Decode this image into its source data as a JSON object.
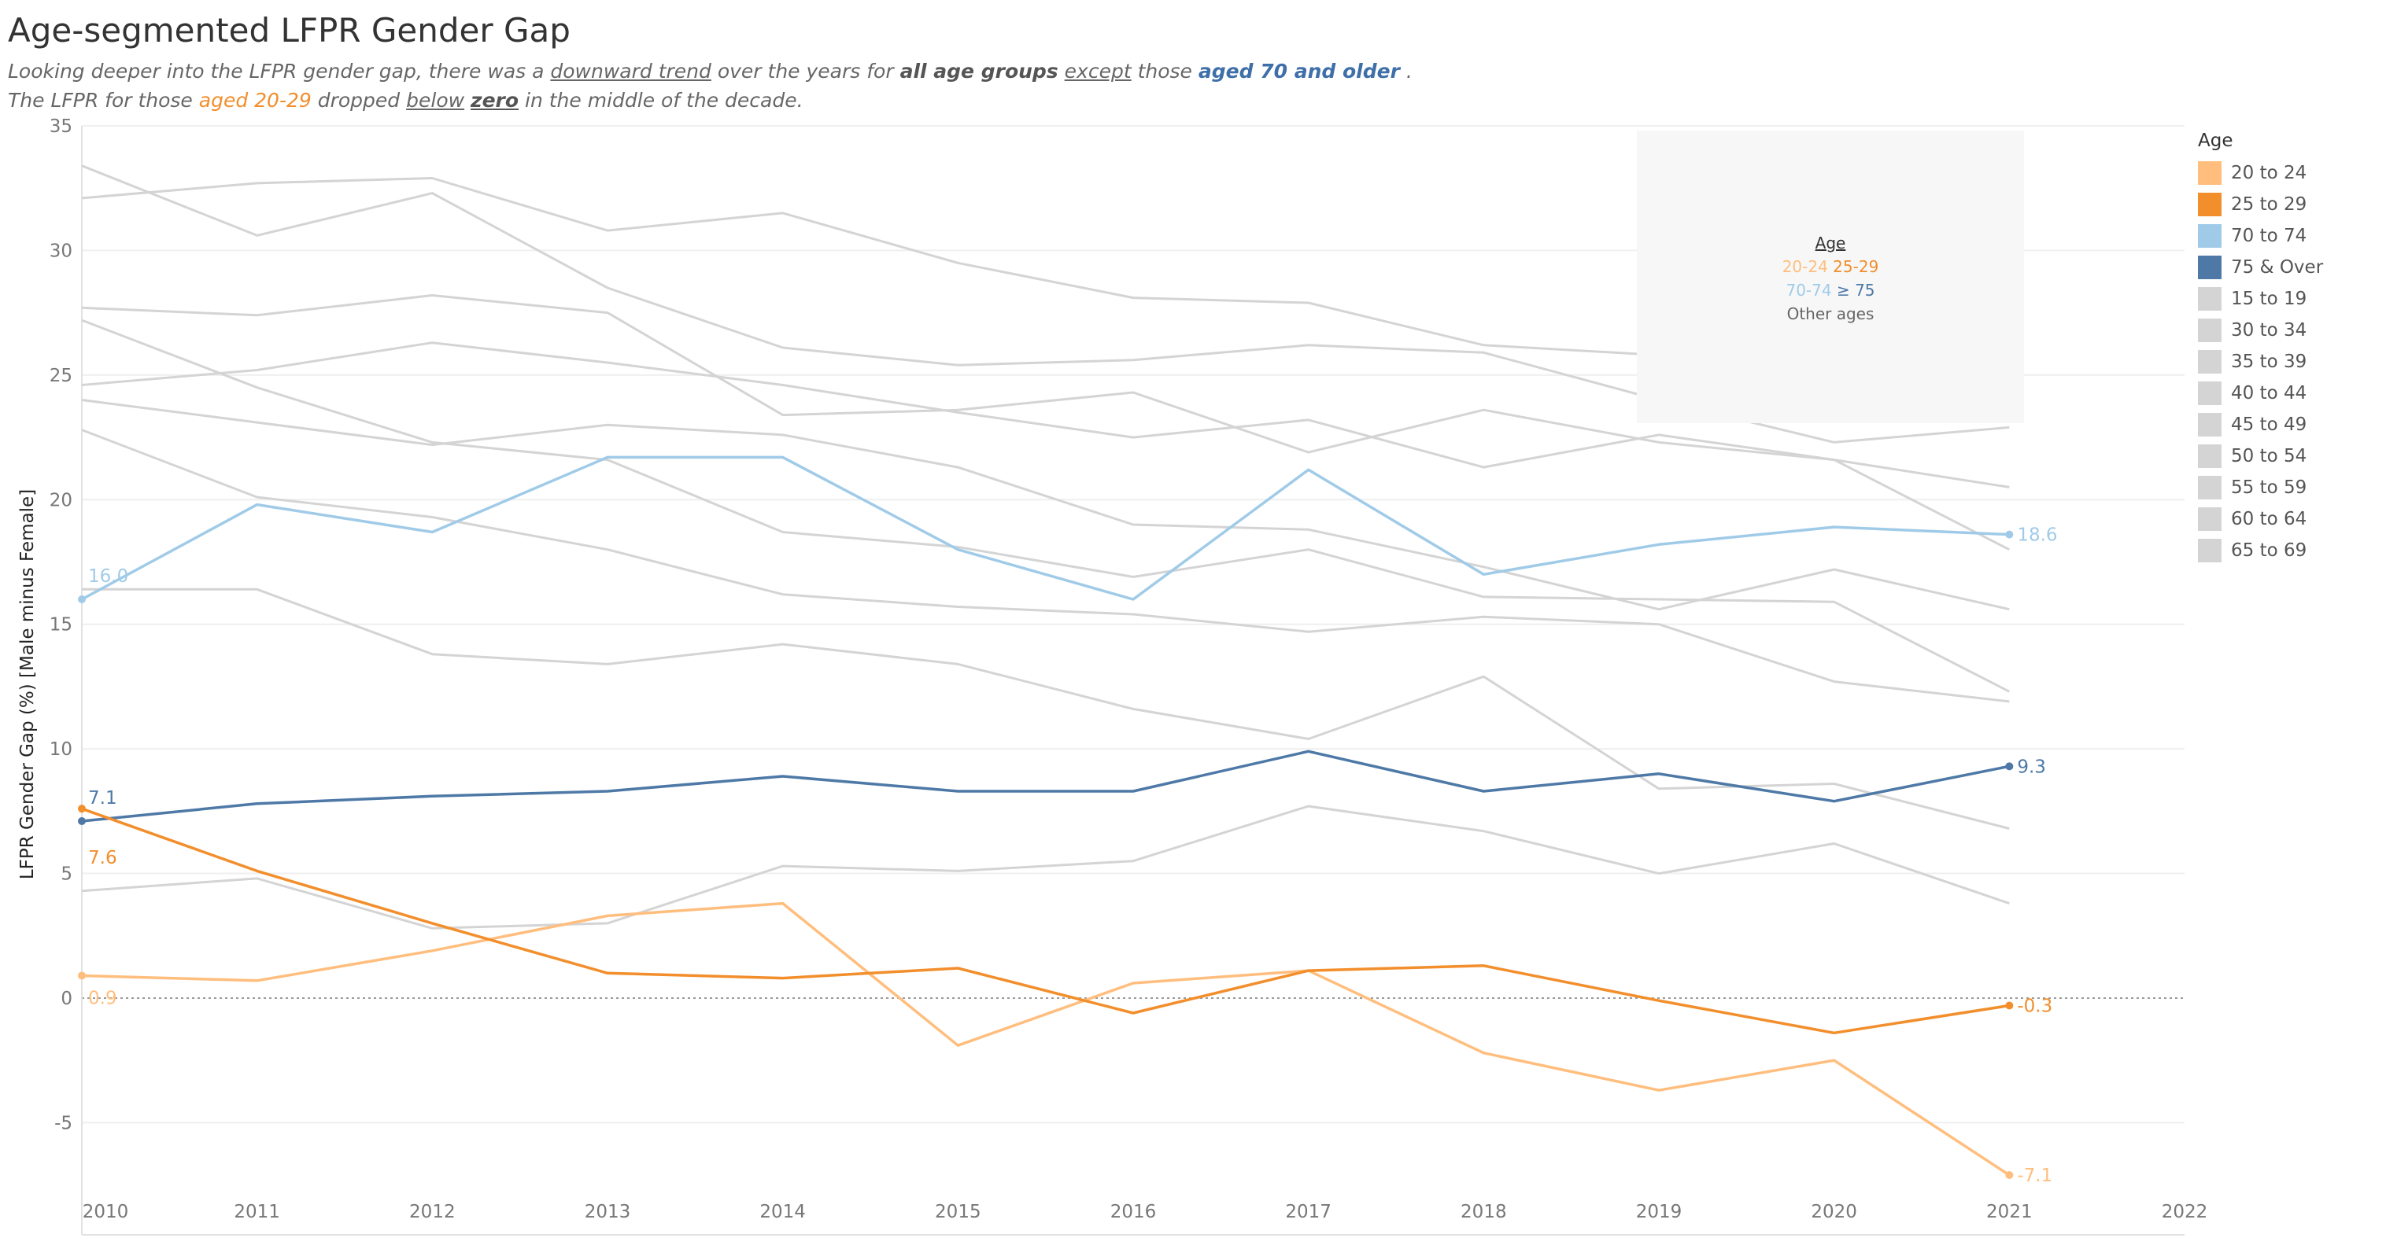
{
  "title": "Age-segmented LFPR Gender Gap",
  "subtitle": {
    "line1": [
      {
        "text": "Looking deeper into the LFPR gender gap, there was a ",
        "style": ""
      },
      {
        "text": "downward trend",
        "style": "u"
      },
      {
        "text": " over the years for ",
        "style": ""
      },
      {
        "text": "all age groups",
        "style": "b"
      },
      {
        "text": " ",
        "style": ""
      },
      {
        "text": "except",
        "style": "u"
      },
      {
        "text": "  those ",
        "style": ""
      },
      {
        "text": "aged 70 and older",
        "style": "blue"
      },
      {
        "text": " .",
        "style": ""
      }
    ],
    "line2": [
      {
        "text": "The LFPR for those ",
        "style": ""
      },
      {
        "text": "aged 20-29",
        "style": "orange"
      },
      {
        "text": " dropped ",
        "style": ""
      },
      {
        "text": "below",
        "style": "u"
      },
      {
        "text": " ",
        "style": ""
      },
      {
        "text": "zero",
        "style": "u b"
      },
      {
        "text": "  in the middle of the decade.",
        "style": ""
      }
    ]
  },
  "annotation": {
    "heading": "Age",
    "row1_a": "20-24",
    "row1_b": "25-29",
    "row2_a": "70-74",
    "row2_b": "≥ 75",
    "row3": "Other ages"
  },
  "legend": {
    "title": "Age",
    "items": [
      {
        "label": "20 to 24",
        "color": "#ffbe7d"
      },
      {
        "label": "25 to 29",
        "color": "#f28e2b"
      },
      {
        "label": "70 to 74",
        "color": "#a0cbe8"
      },
      {
        "label": "75 & Over",
        "color": "#4e79a7"
      },
      {
        "label": "15 to 19",
        "color": "#d4d4d4"
      },
      {
        "label": "30 to 34",
        "color": "#d4d4d4"
      },
      {
        "label": "35 to 39",
        "color": "#d4d4d4"
      },
      {
        "label": "40 to 44",
        "color": "#d4d4d4"
      },
      {
        "label": "45 to 49",
        "color": "#d4d4d4"
      },
      {
        "label": "50 to 54",
        "color": "#d4d4d4"
      },
      {
        "label": "55 to 59",
        "color": "#d4d4d4"
      },
      {
        "label": "60 to 64",
        "color": "#d4d4d4"
      },
      {
        "label": "65 to 69",
        "color": "#d4d4d4"
      }
    ]
  },
  "chart_data": {
    "type": "line",
    "title": "Age-segmented LFPR Gender Gap",
    "xlabel": "",
    "ylabel": "LFPR Gender Gap (%) [Male minus Female]",
    "x": [
      2010,
      2011,
      2012,
      2013,
      2014,
      2015,
      2016,
      2017,
      2018,
      2019,
      2020,
      2021
    ],
    "xticks": [
      "2010",
      "2011",
      "2012",
      "2013",
      "2014",
      "2015",
      "2016",
      "2017",
      "2018",
      "2019",
      "2020",
      "2021",
      "2022"
    ],
    "xlim": [
      2010,
      2022
    ],
    "yticks": [
      -5,
      0,
      5,
      10,
      15,
      20,
      25,
      30,
      35
    ],
    "ylim": [
      -9.5,
      35
    ],
    "zero_line": true,
    "grid": "horizontal",
    "legend_position": "right",
    "series": [
      {
        "name": "15 to 19",
        "color": "#d4d4d4",
        "values": [
          4.3,
          4.8,
          2.8,
          3.0,
          5.3,
          5.1,
          5.5,
          7.7,
          6.7,
          5.0,
          6.2,
          3.8
        ]
      },
      {
        "name": "30 to 34",
        "color": "#d4d4d4",
        "values": [
          16.4,
          16.4,
          13.8,
          13.4,
          14.2,
          13.4,
          11.6,
          10.4,
          12.9,
          8.4,
          8.6,
          6.8
        ]
      },
      {
        "name": "35 to 39",
        "color": "#d4d4d4",
        "values": [
          22.8,
          20.1,
          19.3,
          18.0,
          16.2,
          15.7,
          15.4,
          14.7,
          15.3,
          15.0,
          12.7,
          11.9
        ]
      },
      {
        "name": "40 to 44",
        "color": "#d4d4d4",
        "values": [
          27.2,
          24.5,
          22.3,
          21.6,
          18.7,
          18.1,
          16.9,
          18.0,
          16.1,
          16.0,
          15.9,
          12.3
        ]
      },
      {
        "name": "45 to 49",
        "color": "#d4d4d4",
        "values": [
          24.0,
          23.1,
          22.2,
          23.0,
          22.6,
          21.3,
          19.0,
          18.8,
          17.3,
          15.6,
          17.2,
          15.6
        ]
      },
      {
        "name": "50 to 54",
        "color": "#d4d4d4",
        "values": [
          24.6,
          25.2,
          26.3,
          25.5,
          24.6,
          23.5,
          22.5,
          23.2,
          21.3,
          22.6,
          21.6,
          18.0
        ]
      },
      {
        "name": "55 to 59",
        "color": "#d4d4d4",
        "values": [
          27.7,
          27.4,
          28.2,
          27.5,
          23.4,
          23.6,
          24.3,
          21.9,
          23.6,
          22.3,
          21.6,
          20.5
        ]
      },
      {
        "name": "60 to 64",
        "color": "#d4d4d4",
        "values": [
          32.1,
          32.7,
          32.9,
          30.8,
          31.5,
          29.5,
          28.1,
          27.9,
          26.2,
          25.8,
          25.1,
          25.6
        ]
      },
      {
        "name": "65 to 69",
        "color": "#d4d4d4",
        "values": [
          33.4,
          30.6,
          32.3,
          28.5,
          26.1,
          25.4,
          25.6,
          26.2,
          25.9,
          24.0,
          22.3,
          22.9
        ]
      },
      {
        "name": "70 to 74",
        "color": "#a0cbe8",
        "values": [
          16.0,
          19.8,
          18.7,
          21.7,
          21.7,
          18.0,
          16.0,
          21.2,
          17.0,
          18.2,
          18.9,
          18.6
        ]
      },
      {
        "name": "75 & Over",
        "color": "#4e79a7",
        "values": [
          7.1,
          7.8,
          8.1,
          8.3,
          8.9,
          8.3,
          8.3,
          9.9,
          8.3,
          9.0,
          7.9,
          9.3
        ]
      },
      {
        "name": "20 to 24",
        "color": "#ffbe7d",
        "values": [
          0.9,
          0.7,
          1.9,
          3.3,
          3.8,
          -1.9,
          0.6,
          1.1,
          -2.2,
          -3.7,
          -2.5,
          -7.1
        ]
      },
      {
        "name": "25 to 29",
        "color": "#f28e2b",
        "values": [
          7.6,
          5.1,
          3.0,
          1.0,
          0.8,
          1.2,
          -0.6,
          1.1,
          1.3,
          -0.1,
          -1.4,
          -0.3
        ]
      }
    ],
    "data_labels": [
      {
        "series": "70 to 74",
        "x": 2010,
        "text": "16.0"
      },
      {
        "series": "70 to 74",
        "x": 2021,
        "text": "18.6"
      },
      {
        "series": "75 & Over",
        "x": 2010,
        "text": "7.1"
      },
      {
        "series": "75 & Over",
        "x": 2021,
        "text": "9.3"
      },
      {
        "series": "25 to 29",
        "x": 2010,
        "text": "7.6"
      },
      {
        "series": "25 to 29",
        "x": 2021,
        "text": "-0.3"
      },
      {
        "series": "20 to 24",
        "x": 2010,
        "text": "0.9"
      },
      {
        "series": "20 to 24",
        "x": 2021,
        "text": "-7.1"
      }
    ]
  }
}
